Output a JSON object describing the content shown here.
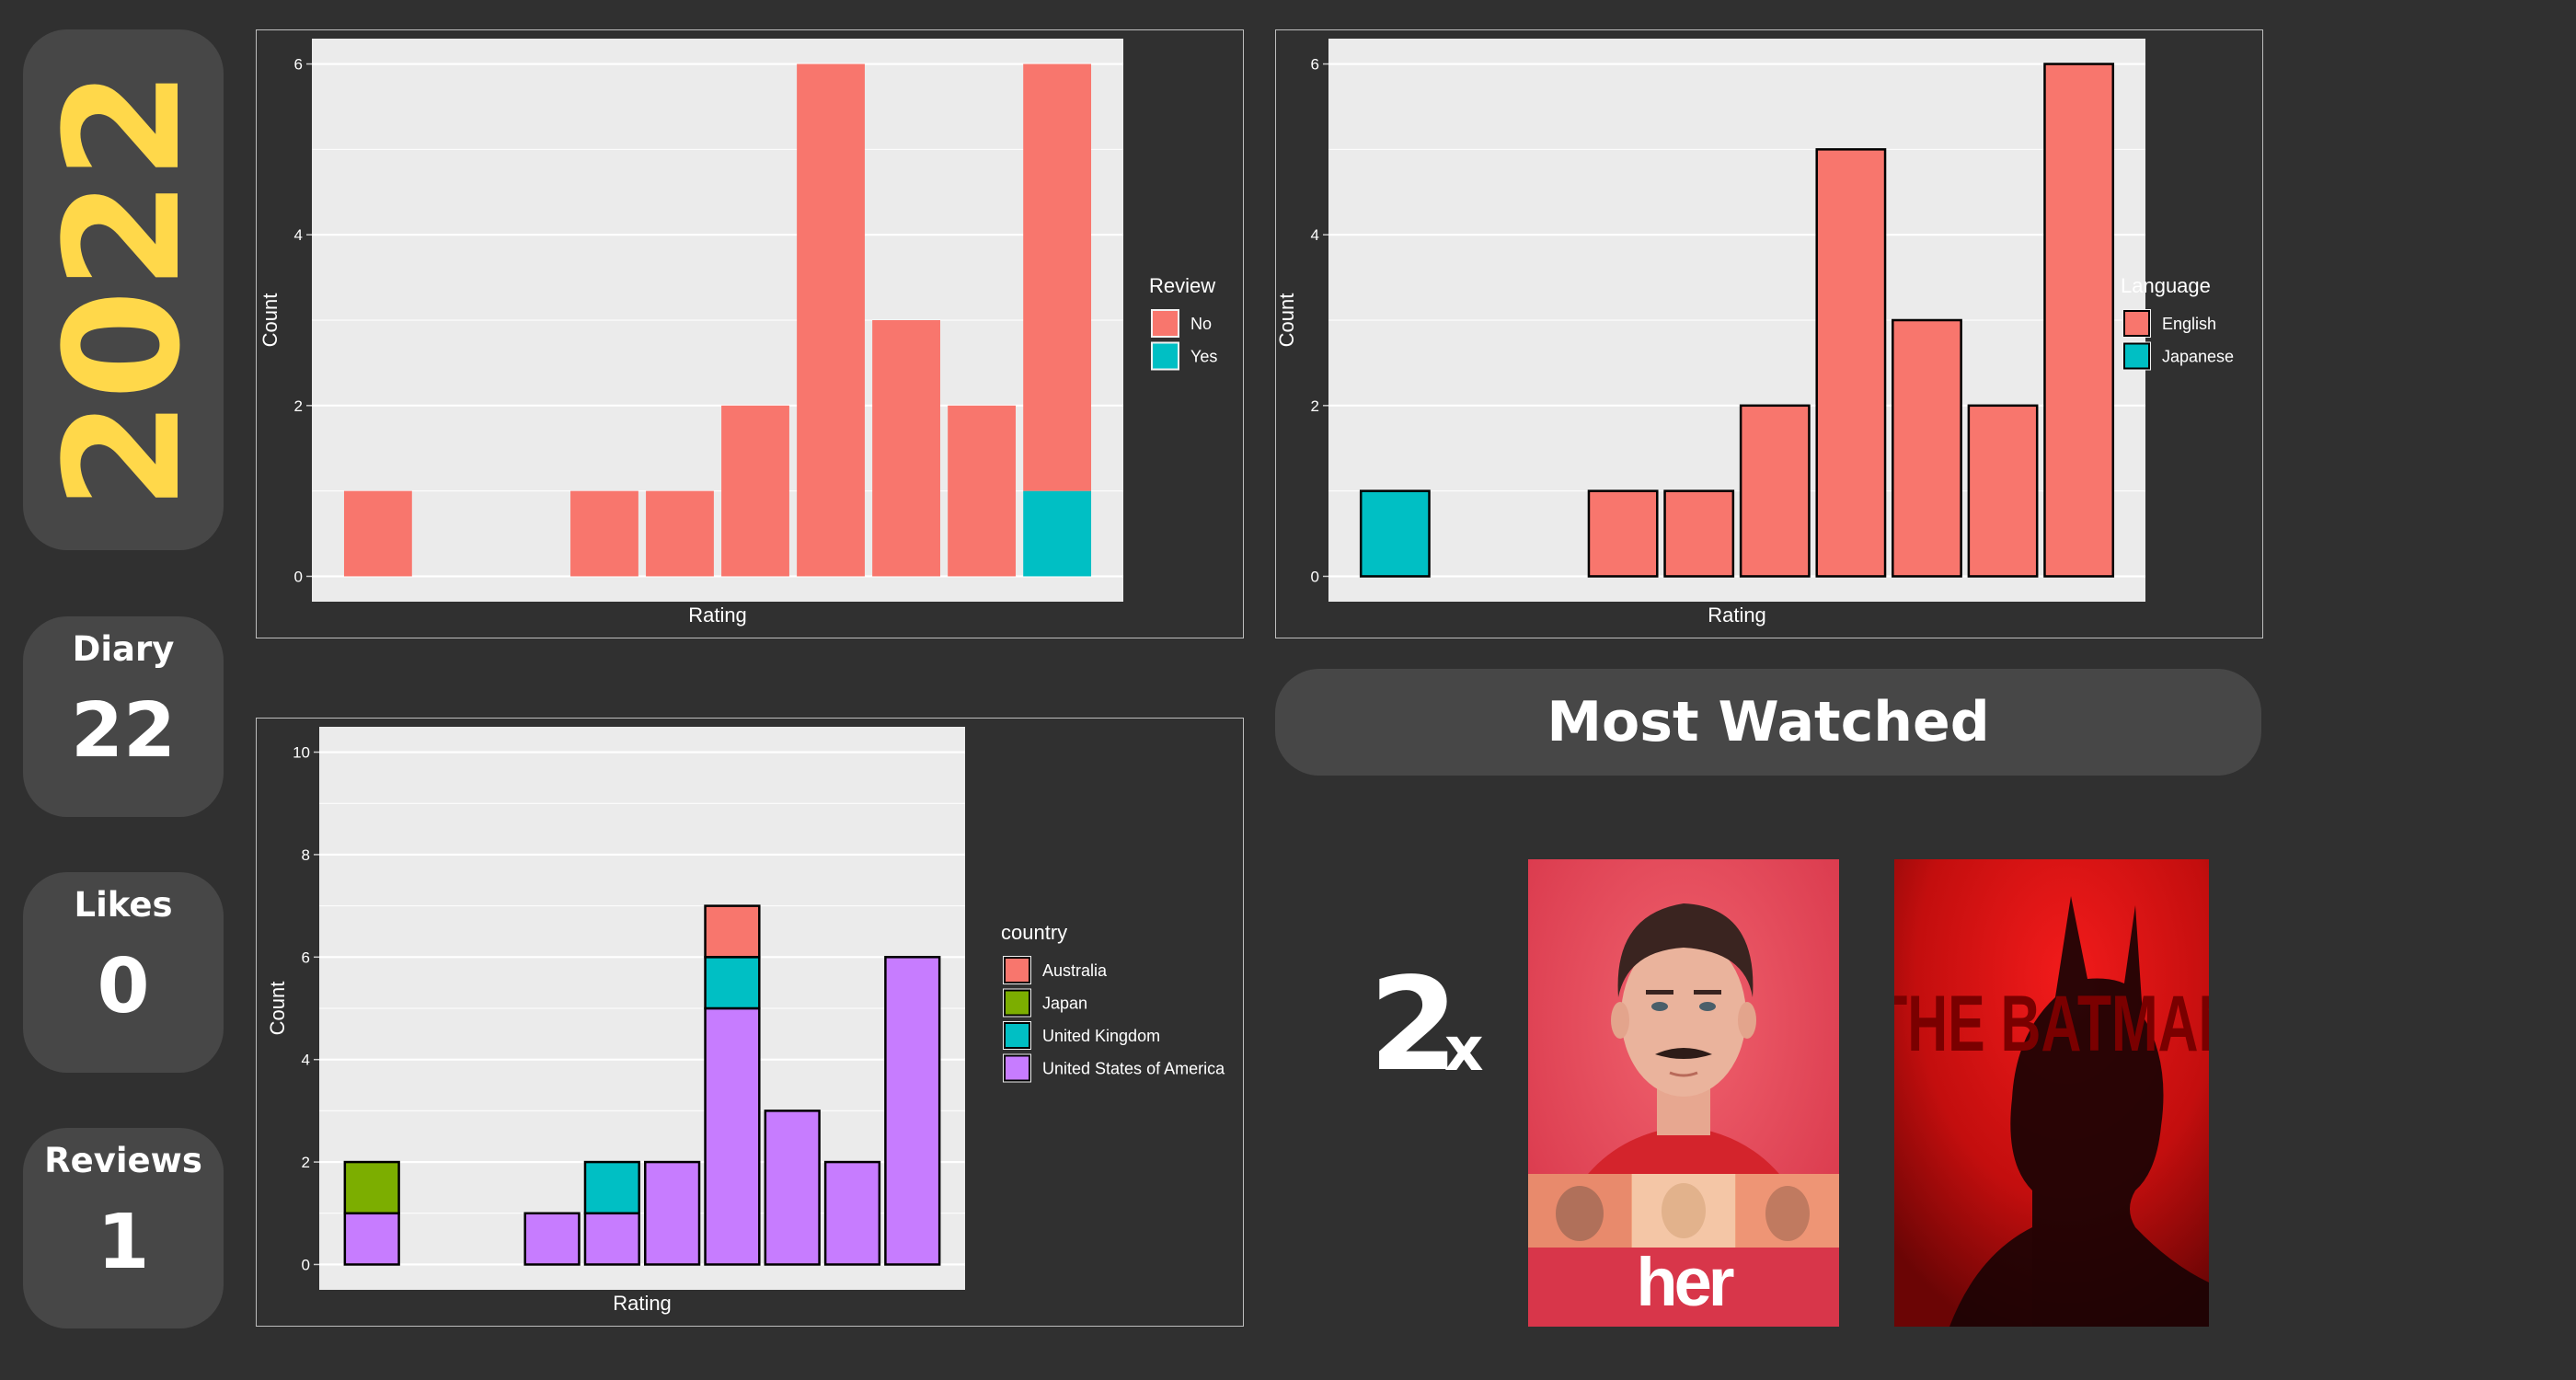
{
  "year": "2022",
  "stats": [
    {
      "label": "Diary",
      "value": "22"
    },
    {
      "label": "Likes",
      "value": "0"
    },
    {
      "label": "Reviews",
      "value": "1"
    }
  ],
  "most_watched": {
    "title": "Most Watched",
    "count": "2",
    "suffix": "x",
    "posters": [
      {
        "title": "her",
        "icon": "her-poster"
      },
      {
        "title": "THE BATMAN",
        "icon": "batman-poster"
      }
    ]
  },
  "colors": {
    "no": "#F8766D",
    "yes": "#00BFC4",
    "english": "#F8766D",
    "japanese": "#00BFC4",
    "australia": "#F8766D",
    "japan": "#7CAE00",
    "united_kingdom": "#00BFC4",
    "usa": "#C77CFF",
    "accent_year": "#FFD84A",
    "panel_bg": "#EBEBEB"
  },
  "chart_data": [
    {
      "type": "bar",
      "stacked": true,
      "xlabel": "Rating",
      "ylabel": "Count",
      "ylim": [
        0,
        6
      ],
      "y_ticks": [
        "0",
        "2",
        "4",
        "6"
      ],
      "legend_title": "Review",
      "legend_position": "right",
      "slots": 10,
      "bars": [
        {
          "slot": 1,
          "segments": [
            1,
            0
          ]
        },
        {
          "slot": 4,
          "segments": [
            1,
            0
          ]
        },
        {
          "slot": 5,
          "segments": [
            1,
            0
          ]
        },
        {
          "slot": 6,
          "segments": [
            2,
            0
          ]
        },
        {
          "slot": 7,
          "segments": [
            6,
            0
          ]
        },
        {
          "slot": 8,
          "segments": [
            3,
            0
          ]
        },
        {
          "slot": 9,
          "segments": [
            2,
            0
          ]
        },
        {
          "slot": 10,
          "segments": [
            5,
            1
          ]
        }
      ],
      "series": [
        {
          "name": "No",
          "color": "#F8766D"
        },
        {
          "name": "Yes",
          "color": "#00BFC4"
        }
      ]
    },
    {
      "type": "bar",
      "stacked": true,
      "xlabel": "Rating",
      "ylabel": "Count",
      "ylim": [
        0,
        6
      ],
      "y_ticks": [
        "0",
        "2",
        "4",
        "6"
      ],
      "legend_title": "Language",
      "legend_position": "right",
      "slots": 10,
      "bars": [
        {
          "slot": 1,
          "segments": [
            0,
            1
          ]
        },
        {
          "slot": 4,
          "segments": [
            1,
            0
          ]
        },
        {
          "slot": 5,
          "segments": [
            1,
            0
          ]
        },
        {
          "slot": 6,
          "segments": [
            2,
            0
          ]
        },
        {
          "slot": 7,
          "segments": [
            5,
            0
          ]
        },
        {
          "slot": 8,
          "segments": [
            3,
            0
          ]
        },
        {
          "slot": 9,
          "segments": [
            2,
            0
          ]
        },
        {
          "slot": 10,
          "segments": [
            6,
            0
          ]
        }
      ],
      "series": [
        {
          "name": "English",
          "color": "#F8766D"
        },
        {
          "name": "Japanese",
          "color": "#00BFC4"
        }
      ]
    },
    {
      "type": "bar",
      "stacked": true,
      "xlabel": "Rating",
      "ylabel": "Count",
      "ylim": [
        0,
        10
      ],
      "y_ticks": [
        "0",
        "2",
        "4",
        "6",
        "8",
        "10"
      ],
      "legend_title": "country",
      "legend_position": "right",
      "slots": 10,
      "bars": [
        {
          "slot": 1,
          "segments": [
            0,
            1,
            0,
            1
          ]
        },
        {
          "slot": 4,
          "segments": [
            0,
            0,
            0,
            1
          ]
        },
        {
          "slot": 5,
          "segments": [
            0,
            0,
            1,
            1
          ]
        },
        {
          "slot": 6,
          "segments": [
            0,
            0,
            0,
            2
          ]
        },
        {
          "slot": 7,
          "segments": [
            1,
            0,
            1,
            5
          ]
        },
        {
          "slot": 8,
          "segments": [
            0,
            0,
            0,
            3
          ]
        },
        {
          "slot": 9,
          "segments": [
            0,
            0,
            0,
            2
          ]
        },
        {
          "slot": 10,
          "segments": [
            0,
            0,
            0,
            6
          ]
        }
      ],
      "series": [
        {
          "name": "Australia",
          "color": "#F8766D"
        },
        {
          "name": "Japan",
          "color": "#7CAE00"
        },
        {
          "name": "United Kingdom",
          "color": "#00BFC4"
        },
        {
          "name": "United States of America",
          "color": "#C77CFF"
        }
      ]
    }
  ]
}
